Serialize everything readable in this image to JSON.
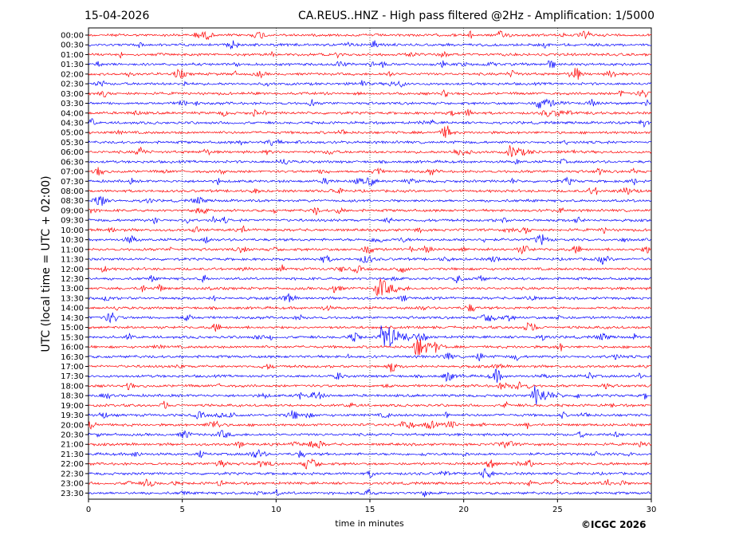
{
  "header": {
    "date": "15-04-2026",
    "title": "CA.REUS..HNZ - High pass filtered @2Hz - Amplification: 1/5000"
  },
  "footer": {
    "copyright": "©ICGC 2026"
  },
  "colors": {
    "trace_a": "#ff0000",
    "trace_b": "#0000ff",
    "gridline": "#000000"
  },
  "chart_data": {
    "type": "line",
    "title": "CA.REUS..HNZ - High pass filtered @2Hz - Amplification: 1/5000",
    "xlabel": "time in minutes",
    "ylabel": "UTC (local time = UTC + 02:00)",
    "xlim": [
      0,
      30
    ],
    "x_ticks": [
      "0",
      "5",
      "10",
      "15",
      "20",
      "25",
      "30"
    ],
    "grid": "vertical dotted lines at x = 5, 10, 15, 20, 25",
    "y_ticks": [
      "00:00",
      "00:30",
      "01:00",
      "01:30",
      "02:00",
      "02:30",
      "03:00",
      "03:30",
      "04:00",
      "04:30",
      "05:00",
      "05:30",
      "06:00",
      "06:30",
      "07:00",
      "07:30",
      "08:00",
      "08:30",
      "09:00",
      "09:30",
      "10:00",
      "10:30",
      "11:00",
      "11:30",
      "12:00",
      "12:30",
      "13:00",
      "13:30",
      "14:00",
      "14:30",
      "15:00",
      "15:30",
      "16:00",
      "16:30",
      "17:00",
      "17:30",
      "18:00",
      "18:30",
      "19:00",
      "19:30",
      "20:00",
      "20:30",
      "21:00",
      "21:30",
      "22:00",
      "22:30",
      "23:00",
      "23:30"
    ],
    "trace_colors": "alternating red / blue per row, starting with red at 00:00",
    "notable_events": [
      {
        "row": "13:00",
        "x_minutes": 15.5,
        "amplitude": "high",
        "color": "red"
      },
      {
        "row": "15:30",
        "x_minutes": 15.7,
        "amplitude": "very high",
        "color": "blue"
      },
      {
        "row": "16:00",
        "x_minutes": 17.5,
        "amplitude": "high",
        "color": "red"
      },
      {
        "row": "18:30",
        "x_minutes": 23.8,
        "amplitude": "high",
        "color": "blue"
      },
      {
        "row": "03:30",
        "x_minutes": 24.0,
        "amplitude": "medium",
        "color": "blue"
      },
      {
        "row": "06:00",
        "x_minutes": 22.5,
        "amplitude": "medium",
        "color": "red"
      }
    ]
  }
}
